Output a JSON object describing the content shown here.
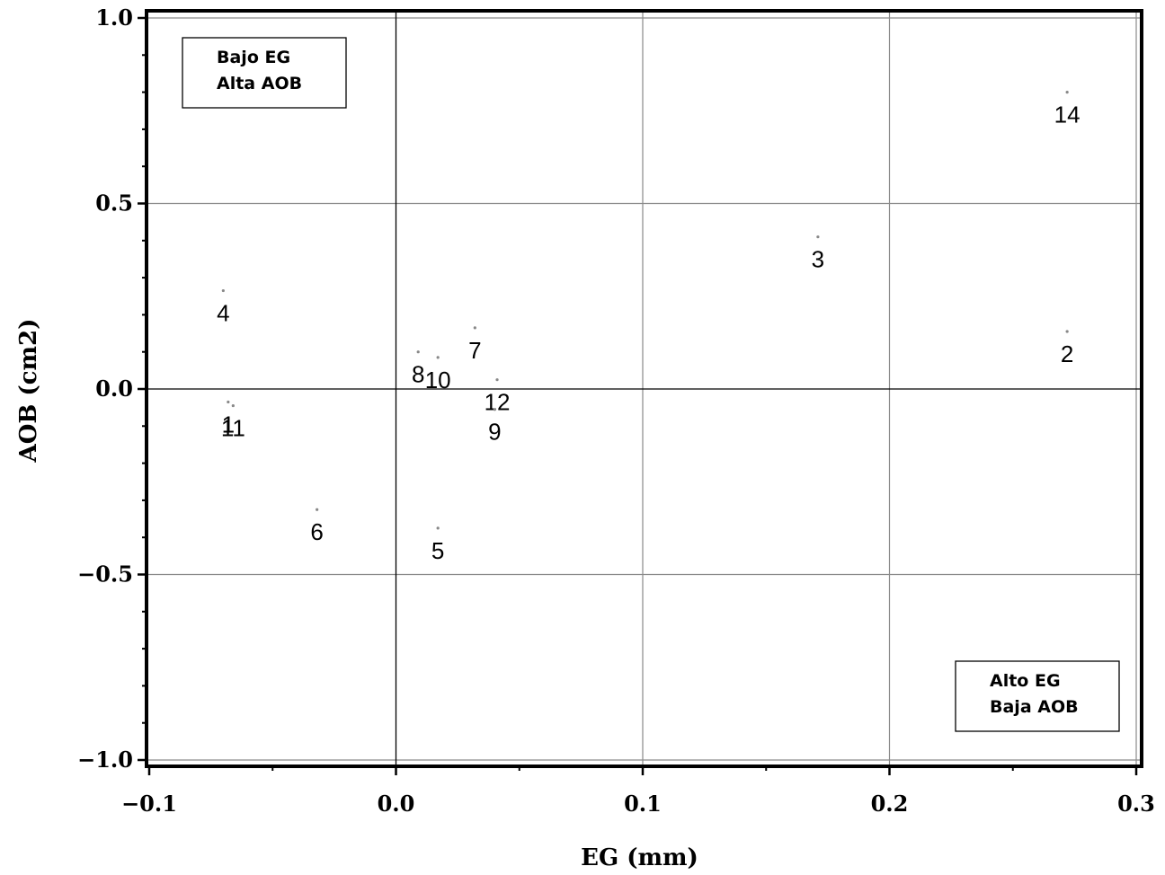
{
  "chart_data": {
    "type": "scatter",
    "xlabel": "EG (mm)",
    "ylabel": "AOB (cm2)",
    "xlim": [
      -0.1,
      0.3
    ],
    "ylim": [
      -1.0,
      1.0
    ],
    "xticks": [
      -0.1,
      0.0,
      0.1,
      0.2,
      0.3
    ],
    "xtick_labels": [
      "−0.1",
      "0.0",
      "0.1",
      "0.2",
      "0.3"
    ],
    "yticks": [
      -1.0,
      -0.5,
      0.0,
      0.5,
      1.0
    ],
    "ytick_labels": [
      "−1.0",
      "−0.5",
      "0.0",
      "0.5",
      "1.0"
    ],
    "grid": true,
    "points": [
      {
        "label": "14",
        "x": 0.272,
        "y": 0.8
      },
      {
        "label": "3",
        "x": 0.171,
        "y": 0.41
      },
      {
        "label": "2",
        "x": 0.272,
        "y": 0.155
      },
      {
        "label": "4",
        "x": -0.07,
        "y": 0.265
      },
      {
        "label": "7",
        "x": 0.032,
        "y": 0.165
      },
      {
        "label": "8",
        "x": 0.009,
        "y": 0.1
      },
      {
        "label": "10",
        "x": 0.017,
        "y": 0.085
      },
      {
        "label": "12",
        "x": 0.041,
        "y": 0.025
      },
      {
        "label": "9",
        "x": 0.04,
        "y": -0.055
      },
      {
        "label": "1",
        "x": -0.068,
        "y": -0.035
      },
      {
        "label": "11",
        "x": -0.066,
        "y": -0.045
      },
      {
        "label": "6",
        "x": -0.032,
        "y": -0.325
      },
      {
        "label": "5",
        "x": 0.017,
        "y": -0.375
      }
    ],
    "annotations": [
      {
        "lines": [
          "Bajo EG",
          "Alta AOB"
        ],
        "position": "top-left"
      },
      {
        "lines": [
          "Alto EG",
          "Baja AOB"
        ],
        "position": "bottom-right"
      }
    ]
  }
}
